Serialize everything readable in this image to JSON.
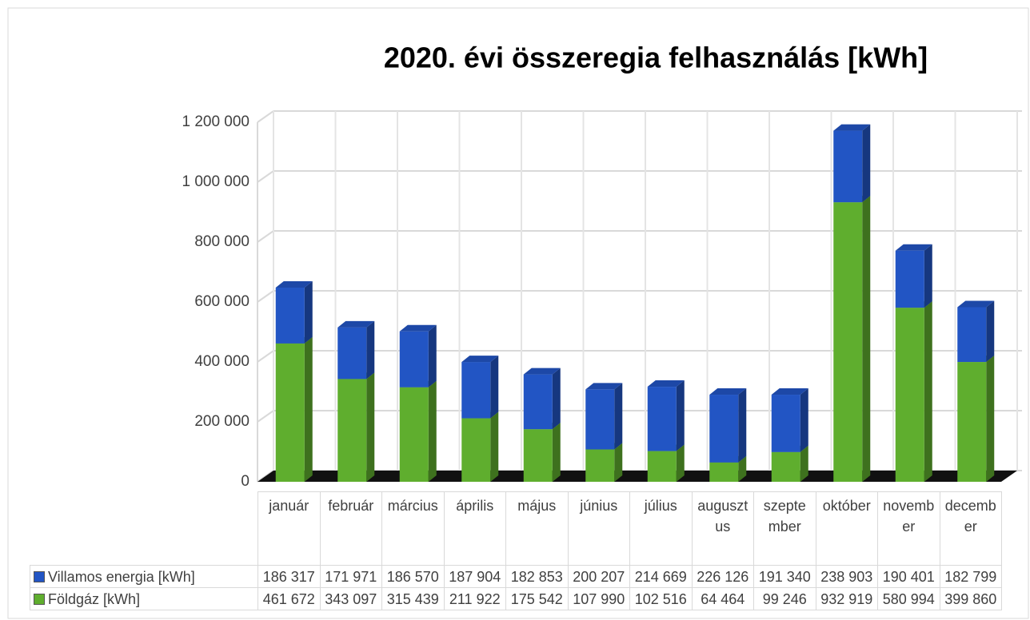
{
  "chart_data": {
    "type": "stacked-bar-3d",
    "title": "2020. évi összeregia felhasználás [kWh]",
    "categories": [
      "január",
      "február",
      "március",
      "április",
      "május",
      "június",
      "július",
      "augusztus",
      "szeptember",
      "október",
      "november",
      "december"
    ],
    "series": [
      {
        "name": "Villamos energia [kWh]",
        "color": "#2255c4",
        "values": [
          186317,
          171971,
          186570,
          187904,
          182853,
          200207,
          214669,
          226126,
          191340,
          238903,
          190401,
          182799
        ],
        "value_labels": [
          "186 317",
          "171 971",
          "186 570",
          "187 904",
          "182 853",
          "200 207",
          "214 669",
          "226 126",
          "191 340",
          "238 903",
          "190 401",
          "182 799"
        ]
      },
      {
        "name": "Földgáz [kWh]",
        "color": "#5fae2e",
        "values": [
          461672,
          343097,
          315439,
          211922,
          175542,
          107990,
          102516,
          64464,
          99246,
          932919,
          580994,
          399860
        ],
        "value_labels": [
          "461 672",
          "343 097",
          "315 439",
          "211 922",
          "175 542",
          "107 990",
          "102 516",
          "64 464",
          "99 246",
          "932 919",
          "580 994",
          "399 860"
        ]
      }
    ],
    "ylim": [
      0,
      1200000
    ],
    "yticks": [
      0,
      {
        "value": 200000,
        "label": "200 000"
      },
      {
        "value": 400000,
        "label": "400 000"
      },
      {
        "value": 600000,
        "label": "600 000"
      },
      {
        "value": 800000,
        "label": "800 000"
      },
      {
        "value": 1000000,
        "label": "1 000 000"
      },
      {
        "value": 1200000,
        "label": "1 200 000"
      }
    ],
    "grid": true
  }
}
